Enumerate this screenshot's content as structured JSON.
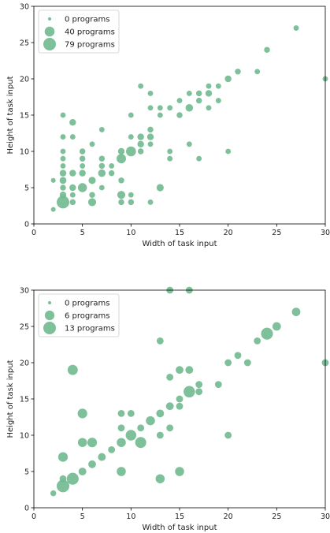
{
  "chart_data": [
    {
      "type": "scatter",
      "xlabel": "Width of task input",
      "ylabel": "Height of task input",
      "xlim": [
        0,
        30
      ],
      "ylim": [
        0,
        30
      ],
      "xticks": [
        0,
        5,
        10,
        15,
        20,
        25,
        30
      ],
      "yticks": [
        0,
        5,
        10,
        15,
        20,
        25,
        30
      ],
      "grid": false,
      "legend_position": "top-left",
      "color": "#6fb98f",
      "legend": [
        {
          "label": "0 programs",
          "size": 0
        },
        {
          "label": "40 programs",
          "size": 40
        },
        {
          "label": "79 programs",
          "size": 79
        }
      ],
      "points": [
        {
          "x": 2,
          "y": 2,
          "size": 2
        },
        {
          "x": 2,
          "y": 6,
          "size": 2
        },
        {
          "x": 3,
          "y": 3,
          "size": 79
        },
        {
          "x": 3,
          "y": 4,
          "size": 10
        },
        {
          "x": 3,
          "y": 5,
          "size": 6
        },
        {
          "x": 3,
          "y": 6,
          "size": 12
        },
        {
          "x": 3,
          "y": 7,
          "size": 10
        },
        {
          "x": 3,
          "y": 8,
          "size": 4
        },
        {
          "x": 3,
          "y": 9,
          "size": 4
        },
        {
          "x": 3,
          "y": 10,
          "size": 4
        },
        {
          "x": 3,
          "y": 12,
          "size": 4
        },
        {
          "x": 3,
          "y": 15,
          "size": 4
        },
        {
          "x": 4,
          "y": 3,
          "size": 6
        },
        {
          "x": 4,
          "y": 4,
          "size": 4
        },
        {
          "x": 4,
          "y": 5,
          "size": 10
        },
        {
          "x": 4,
          "y": 7,
          "size": 10
        },
        {
          "x": 4,
          "y": 12,
          "size": 4
        },
        {
          "x": 4,
          "y": 14,
          "size": 10
        },
        {
          "x": 5,
          "y": 5,
          "size": 30
        },
        {
          "x": 5,
          "y": 7,
          "size": 10
        },
        {
          "x": 5,
          "y": 8,
          "size": 4
        },
        {
          "x": 5,
          "y": 9,
          "size": 6
        },
        {
          "x": 5,
          "y": 10,
          "size": 6
        },
        {
          "x": 6,
          "y": 3,
          "size": 20
        },
        {
          "x": 6,
          "y": 4,
          "size": 6
        },
        {
          "x": 6,
          "y": 6,
          "size": 14
        },
        {
          "x": 6,
          "y": 11,
          "size": 4
        },
        {
          "x": 7,
          "y": 5,
          "size": 4
        },
        {
          "x": 7,
          "y": 7,
          "size": 16
        },
        {
          "x": 7,
          "y": 8,
          "size": 6
        },
        {
          "x": 7,
          "y": 9,
          "size": 6
        },
        {
          "x": 7,
          "y": 13,
          "size": 4
        },
        {
          "x": 8,
          "y": 7,
          "size": 6
        },
        {
          "x": 8,
          "y": 8,
          "size": 4
        },
        {
          "x": 9,
          "y": 3,
          "size": 6
        },
        {
          "x": 9,
          "y": 4,
          "size": 20
        },
        {
          "x": 9,
          "y": 6,
          "size": 6
        },
        {
          "x": 9,
          "y": 9,
          "size": 34
        },
        {
          "x": 9,
          "y": 10,
          "size": 10
        },
        {
          "x": 10,
          "y": 3,
          "size": 6
        },
        {
          "x": 10,
          "y": 4,
          "size": 4
        },
        {
          "x": 10,
          "y": 10,
          "size": 40
        },
        {
          "x": 10,
          "y": 12,
          "size": 4
        },
        {
          "x": 10,
          "y": 15,
          "size": 4
        },
        {
          "x": 11,
          "y": 10,
          "size": 6
        },
        {
          "x": 11,
          "y": 11,
          "size": 10
        },
        {
          "x": 11,
          "y": 12,
          "size": 10
        },
        {
          "x": 11,
          "y": 19,
          "size": 4
        },
        {
          "x": 12,
          "y": 3,
          "size": 4
        },
        {
          "x": 12,
          "y": 11,
          "size": 4
        },
        {
          "x": 12,
          "y": 12,
          "size": 10
        },
        {
          "x": 12,
          "y": 13,
          "size": 6
        },
        {
          "x": 12,
          "y": 16,
          "size": 4
        },
        {
          "x": 12,
          "y": 18,
          "size": 4
        },
        {
          "x": 13,
          "y": 5,
          "size": 14
        },
        {
          "x": 13,
          "y": 15,
          "size": 4
        },
        {
          "x": 13,
          "y": 16,
          "size": 4
        },
        {
          "x": 14,
          "y": 9,
          "size": 4
        },
        {
          "x": 14,
          "y": 10,
          "size": 4
        },
        {
          "x": 14,
          "y": 16,
          "size": 4
        },
        {
          "x": 15,
          "y": 15,
          "size": 6
        },
        {
          "x": 15,
          "y": 17,
          "size": 4
        },
        {
          "x": 16,
          "y": 11,
          "size": 4
        },
        {
          "x": 16,
          "y": 16,
          "size": 16
        },
        {
          "x": 16,
          "y": 18,
          "size": 4
        },
        {
          "x": 17,
          "y": 9,
          "size": 4
        },
        {
          "x": 17,
          "y": 17,
          "size": 6
        },
        {
          "x": 17,
          "y": 18,
          "size": 6
        },
        {
          "x": 18,
          "y": 16,
          "size": 4
        },
        {
          "x": 18,
          "y": 18,
          "size": 10
        },
        {
          "x": 18,
          "y": 19,
          "size": 4
        },
        {
          "x": 19,
          "y": 17,
          "size": 4
        },
        {
          "x": 19,
          "y": 19,
          "size": 4
        },
        {
          "x": 20,
          "y": 10,
          "size": 4
        },
        {
          "x": 20,
          "y": 20,
          "size": 10
        },
        {
          "x": 21,
          "y": 21,
          "size": 6
        },
        {
          "x": 23,
          "y": 21,
          "size": 4
        },
        {
          "x": 24,
          "y": 24,
          "size": 6
        },
        {
          "x": 27,
          "y": 27,
          "size": 4
        },
        {
          "x": 30,
          "y": 20,
          "size": 4
        }
      ]
    },
    {
      "type": "scatter",
      "xlabel": "Width of task input",
      "ylabel": "Height of task input",
      "xlim": [
        0,
        30
      ],
      "ylim": [
        0,
        30
      ],
      "xticks": [
        0,
        5,
        10,
        15,
        20,
        25,
        30
      ],
      "yticks": [
        0,
        5,
        10,
        15,
        20,
        25,
        30
      ],
      "grid": false,
      "legend_position": "top-left",
      "color": "#6fb98f",
      "legend": [
        {
          "label": "0 programs",
          "size": 0
        },
        {
          "label": "6 programs",
          "size": 6
        },
        {
          "label": "13 programs",
          "size": 13
        }
      ],
      "points": [
        {
          "x": 2,
          "y": 2,
          "size": 1
        },
        {
          "x": 3,
          "y": 3,
          "size": 13
        },
        {
          "x": 3,
          "y": 4,
          "size": 2
        },
        {
          "x": 3,
          "y": 7,
          "size": 6
        },
        {
          "x": 4,
          "y": 4,
          "size": 11
        },
        {
          "x": 4,
          "y": 19,
          "size": 7
        },
        {
          "x": 5,
          "y": 5,
          "size": 3
        },
        {
          "x": 5,
          "y": 9,
          "size": 5
        },
        {
          "x": 5,
          "y": 13,
          "size": 6
        },
        {
          "x": 6,
          "y": 6,
          "size": 3
        },
        {
          "x": 6,
          "y": 9,
          "size": 6
        },
        {
          "x": 7,
          "y": 7,
          "size": 3
        },
        {
          "x": 8,
          "y": 8,
          "size": 2
        },
        {
          "x": 9,
          "y": 5,
          "size": 5
        },
        {
          "x": 9,
          "y": 9,
          "size": 5
        },
        {
          "x": 9,
          "y": 11,
          "size": 2
        },
        {
          "x": 9,
          "y": 13,
          "size": 2
        },
        {
          "x": 10,
          "y": 10,
          "size": 8
        },
        {
          "x": 10,
          "y": 13,
          "size": 2
        },
        {
          "x": 11,
          "y": 9,
          "size": 9
        },
        {
          "x": 11,
          "y": 11,
          "size": 2
        },
        {
          "x": 12,
          "y": 12,
          "size": 5
        },
        {
          "x": 13,
          "y": 4,
          "size": 5
        },
        {
          "x": 13,
          "y": 10,
          "size": 2
        },
        {
          "x": 13,
          "y": 13,
          "size": 3
        },
        {
          "x": 13,
          "y": 23,
          "size": 2
        },
        {
          "x": 14,
          "y": 11,
          "size": 2
        },
        {
          "x": 14,
          "y": 14,
          "size": 3
        },
        {
          "x": 14,
          "y": 18,
          "size": 2
        },
        {
          "x": 14,
          "y": 30,
          "size": 2
        },
        {
          "x": 15,
          "y": 5,
          "size": 5
        },
        {
          "x": 15,
          "y": 14,
          "size": 2
        },
        {
          "x": 15,
          "y": 15,
          "size": 2
        },
        {
          "x": 15,
          "y": 19,
          "size": 3
        },
        {
          "x": 16,
          "y": 16,
          "size": 10
        },
        {
          "x": 16,
          "y": 19,
          "size": 3
        },
        {
          "x": 16,
          "y": 30,
          "size": 2
        },
        {
          "x": 17,
          "y": 16,
          "size": 2
        },
        {
          "x": 17,
          "y": 17,
          "size": 2
        },
        {
          "x": 19,
          "y": 17,
          "size": 2
        },
        {
          "x": 20,
          "y": 10,
          "size": 2
        },
        {
          "x": 20,
          "y": 20,
          "size": 2
        },
        {
          "x": 21,
          "y": 21,
          "size": 2
        },
        {
          "x": 22,
          "y": 20,
          "size": 2
        },
        {
          "x": 23,
          "y": 23,
          "size": 2
        },
        {
          "x": 24,
          "y": 24,
          "size": 11
        },
        {
          "x": 25,
          "y": 25,
          "size": 4
        },
        {
          "x": 27,
          "y": 27,
          "size": 4
        },
        {
          "x": 30,
          "y": 20,
          "size": 2
        }
      ]
    }
  ]
}
